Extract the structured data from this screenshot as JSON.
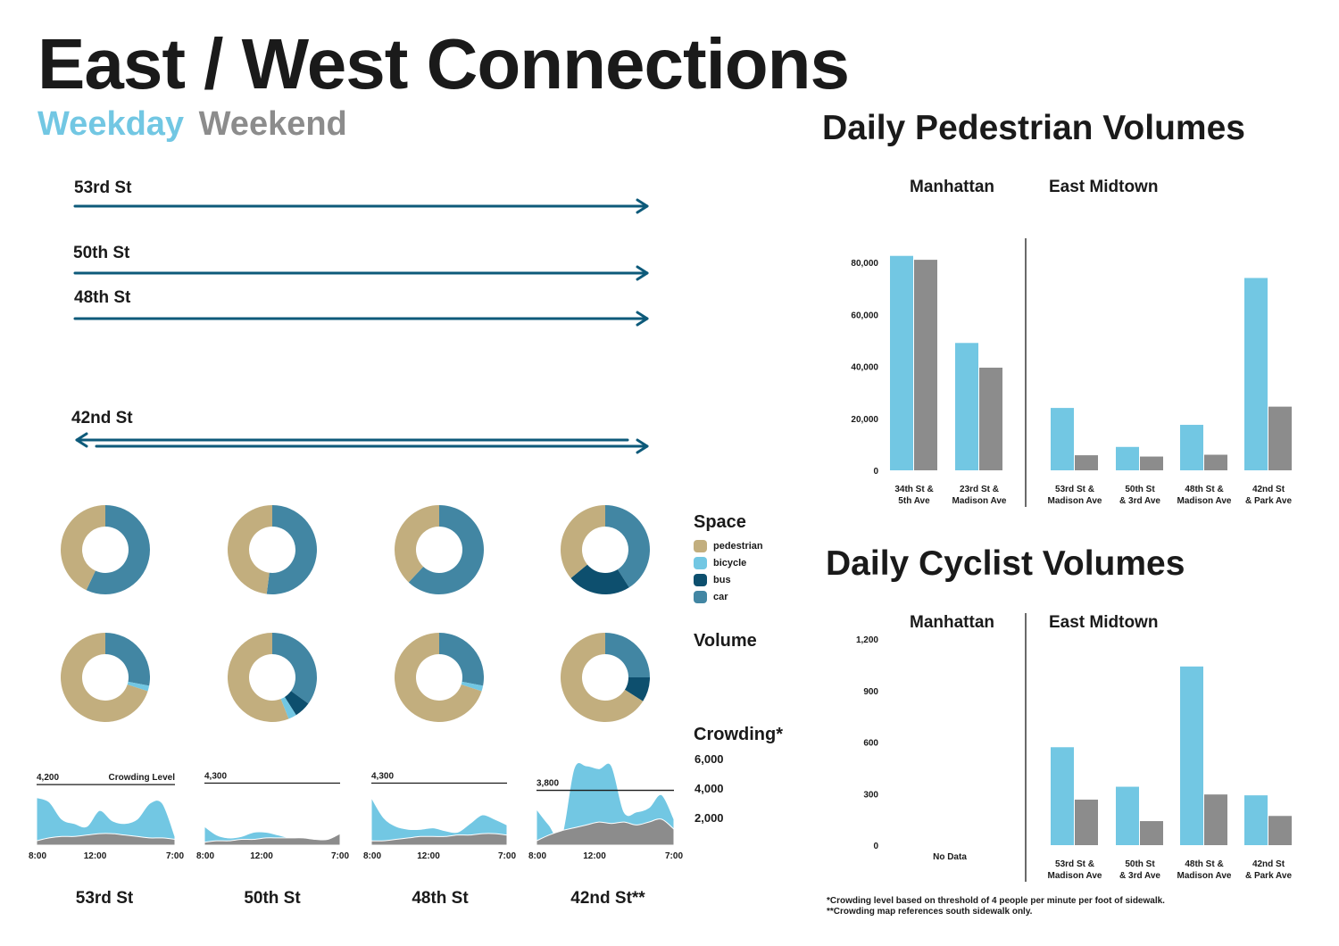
{
  "title": "East / West Connections",
  "tabs": {
    "weekday": "Weekday",
    "weekend": "Weekend"
  },
  "colors": {
    "weekday": "#72c7e3",
    "weekend": "#8c8c8c",
    "arrow": "#0d5a7a",
    "pedestrian": "#c2ae7e",
    "bicycle": "#72c7e3",
    "bus": "#0d4f6e",
    "car": "#4286a3"
  },
  "streets": [
    {
      "label": "53rd St",
      "direction": "east"
    },
    {
      "label": "50th St",
      "direction": "east"
    },
    {
      "label": "48th St",
      "direction": "east"
    },
    {
      "label": "42nd St",
      "direction": "both"
    }
  ],
  "legend": {
    "space_heading": "Space",
    "items": [
      {
        "label": "pedestrian",
        "color": "#c2ae7e"
      },
      {
        "label": "bicycle",
        "color": "#72c7e3"
      },
      {
        "label": "bus",
        "color": "#0d4f6e"
      },
      {
        "label": "car",
        "color": "#4286a3"
      }
    ],
    "volume_heading": "Volume",
    "crowding_heading": "Crowding*",
    "crowding_ticks": [
      "6,000",
      "4,000",
      "2,000"
    ]
  },
  "bottom_labels": [
    "53rd St",
    "50th St",
    "48th St",
    "42nd St**"
  ],
  "right_titles": {
    "pedestrian": "Daily Pedestrian Volumes",
    "cyclist": "Daily Cyclist Volumes"
  },
  "regions": {
    "manhattan": "Manhattan",
    "east_midtown": "East Midtown"
  },
  "notes": [
    "*Crowding level based on threshold of 4 people per minute per foot of sidewalk.",
    "**Crowding map references south sidewalk only."
  ],
  "chart_data": [
    {
      "type": "pie",
      "title": "Space",
      "categories": [
        "pedestrian",
        "bicycle",
        "bus",
        "car"
      ],
      "streets": [
        "53rd St",
        "50th St",
        "48th St",
        "42nd St"
      ],
      "values": [
        [
          0.43,
          0,
          0,
          0.57
        ],
        [
          0.48,
          0,
          0,
          0.52
        ],
        [
          0.38,
          0,
          0,
          0.62
        ],
        [
          0.36,
          0,
          0.23,
          0.41
        ]
      ]
    },
    {
      "type": "pie",
      "title": "Volume",
      "categories": [
        "pedestrian",
        "bicycle",
        "bus",
        "car"
      ],
      "streets": [
        "53rd St",
        "50th St",
        "48th St",
        "42nd St"
      ],
      "values": [
        [
          0.7,
          0.02,
          0,
          0.28
        ],
        [
          0.56,
          0.03,
          0.06,
          0.35
        ],
        [
          0.7,
          0.02,
          0,
          0.28
        ],
        [
          0.66,
          0,
          0.09,
          0.25
        ]
      ]
    },
    {
      "type": "area",
      "title": "Crowding*",
      "x_ticks": [
        "8:00",
        "12:00",
        "7:00"
      ],
      "ylim": [
        0,
        6000
      ],
      "threshold_label": "Crowding Level",
      "charts": [
        {
          "street": "53rd St",
          "threshold": "4,200",
          "threshold_value": 4200,
          "weekday": [
            3300,
            3000,
            1800,
            1500,
            1300,
            2400,
            1700,
            1500,
            1800,
            2900,
            2900,
            600
          ],
          "weekend": [
            300,
            500,
            600,
            600,
            700,
            800,
            800,
            700,
            600,
            500,
            500,
            400
          ]
        },
        {
          "street": "50th St",
          "threshold": "4,300",
          "threshold_value": 4300,
          "weekday": [
            1300,
            700,
            500,
            600,
            900,
            900,
            700,
            500,
            500,
            400,
            300,
            200
          ],
          "weekend": [
            200,
            300,
            300,
            400,
            400,
            500,
            500,
            500,
            500,
            400,
            400,
            800
          ]
        },
        {
          "street": "48th St",
          "threshold": "4,300",
          "threshold_value": 4300,
          "weekday": [
            3300,
            1900,
            1300,
            1100,
            1100,
            1200,
            1000,
            900,
            1500,
            2100,
            1800,
            1400
          ],
          "weekend": [
            300,
            300,
            400,
            500,
            600,
            600,
            600,
            700,
            700,
            800,
            800,
            700
          ]
        },
        {
          "street": "42nd St**",
          "threshold": "3,800",
          "threshold_value": 3800,
          "weekday": [
            2500,
            1400,
            600,
            5300,
            5500,
            5300,
            5500,
            2300,
            2300,
            2600,
            3500,
            1800
          ],
          "weekend": [
            300,
            700,
            1000,
            1200,
            1400,
            1600,
            1500,
            1600,
            1400,
            1600,
            1800,
            1100
          ]
        }
      ]
    },
    {
      "type": "bar",
      "title": "Daily Pedestrian Volumes",
      "ylim": [
        0,
        80000
      ],
      "y_ticks": [
        "0",
        "20,000",
        "40,000",
        "60,000",
        "80,000"
      ],
      "y_tick_values": [
        0,
        20000,
        40000,
        60000,
        80000
      ],
      "groups": [
        {
          "region": "Manhattan",
          "categories": [
            [
              "34th St &",
              "5th Ave"
            ],
            [
              "23rd St &",
              "Madison Ave"
            ]
          ]
        },
        {
          "region": "East Midtown",
          "categories": [
            [
              "53rd St &",
              "Madison Ave"
            ],
            [
              "50th St",
              "& 3rd Ave"
            ],
            [
              "48th St &",
              "Madison Ave"
            ],
            [
              "42nd St",
              "& Park Ave"
            ]
          ]
        }
      ],
      "series": [
        {
          "name": "Weekday",
          "values": [
            82500,
            49000,
            24000,
            9000,
            17500,
            74000
          ]
        },
        {
          "name": "Weekend",
          "values": [
            81000,
            39500,
            5800,
            5300,
            6000,
            24500
          ]
        }
      ]
    },
    {
      "type": "bar",
      "title": "Daily Cyclist Volumes",
      "ylim": [
        0,
        1200
      ],
      "y_ticks": [
        "0",
        "300",
        "600",
        "900",
        "1,200"
      ],
      "y_tick_values": [
        0,
        300,
        600,
        900,
        1200
      ],
      "no_data_label": "No Data",
      "groups": [
        {
          "region": "Manhattan",
          "categories": []
        },
        {
          "region": "East Midtown",
          "categories": [
            [
              "53rd St &",
              "Madison Ave"
            ],
            [
              "50th St",
              "& 3rd Ave"
            ],
            [
              "48th St &",
              "Madison Ave"
            ],
            [
              "42nd St",
              "& Park Ave"
            ]
          ]
        }
      ],
      "series": [
        {
          "name": "Weekday",
          "values": [
            570,
            340,
            1040,
            290
          ]
        },
        {
          "name": "Weekend",
          "values": [
            265,
            140,
            295,
            170
          ]
        }
      ]
    }
  ]
}
